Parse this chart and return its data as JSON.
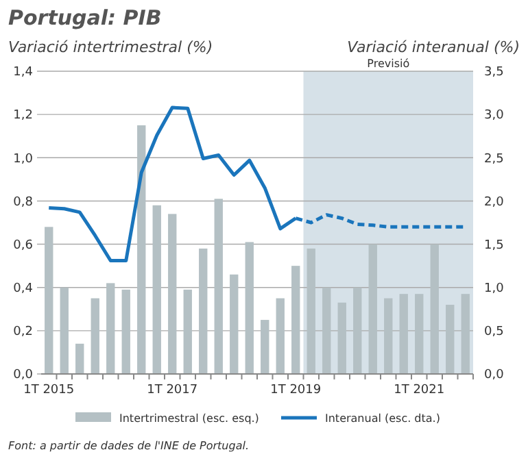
{
  "chart_data": {
    "type": "bar",
    "title": "Portugal: PIB",
    "ylabel": "Variació intertrimestral (%)",
    "y2label": "Variació interanual (%)",
    "categories": [
      "1T 2015",
      null,
      null,
      null,
      null,
      null,
      null,
      null,
      "1T 2017",
      null,
      null,
      null,
      null,
      null,
      null,
      null,
      "1T 2019",
      null,
      null,
      null,
      null,
      null,
      null,
      null,
      "1T 2021",
      null,
      null,
      null
    ],
    "series": [
      {
        "name": "Intertrimestral (esc. esq.)",
        "color": "#b4c0c4",
        "values": [
          0.68,
          0.4,
          0.14,
          0.35,
          0.42,
          0.39,
          1.15,
          0.78,
          0.74,
          0.39,
          0.58,
          0.81,
          0.46,
          0.61,
          0.25,
          0.35,
          0.5,
          0.58,
          0.4,
          0.33,
          0.4,
          0.6,
          0.35,
          0.37,
          0.37,
          0.6,
          0.32,
          0.37
        ]
      },
      {
        "name": "Interanual (esc. dta.)",
        "type": "line",
        "axis": "y2",
        "color": "#1a75bc",
        "line_style": "solid",
        "values": [
          1.92,
          1.91,
          1.87,
          1.6,
          1.31,
          1.31,
          2.33,
          2.76,
          3.08,
          3.07,
          2.49,
          2.53,
          2.3,
          2.47,
          2.15,
          1.68,
          1.8,
          null,
          null,
          null,
          null,
          null,
          null,
          null,
          null,
          null,
          null,
          null
        ]
      },
      {
        "type": "line",
        "axis": "y2",
        "color": "#1a75bc",
        "line_style": "dashed",
        "values": [
          null,
          null,
          null,
          null,
          null,
          null,
          null,
          null,
          null,
          null,
          null,
          null,
          null,
          null,
          null,
          null,
          1.8,
          1.75,
          1.84,
          1.8,
          1.73,
          1.72,
          1.7,
          1.7,
          1.7,
          1.7,
          1.7,
          1.7
        ]
      }
    ],
    "ylim": [
      0,
      1.4
    ],
    "yticks": [
      {
        "value": 0,
        "label": "0,0"
      },
      {
        "value": 0.2,
        "label": "0,2"
      },
      {
        "value": 0.4,
        "label": "0,4"
      },
      {
        "value": 0.6,
        "label": "0,6"
      },
      {
        "value": 0.8,
        "label": "0,8"
      },
      {
        "value": 1.0,
        "label": "1,0"
      },
      {
        "value": 1.2,
        "label": "1,2"
      },
      {
        "value": 1.4,
        "label": "1,4"
      }
    ],
    "y2lim": [
      0,
      3.5
    ],
    "y2ticks": [
      {
        "value": 0,
        "label": "0,0"
      },
      {
        "value": 0.5,
        "label": "0,5"
      },
      {
        "value": 1.0,
        "label": "1,0"
      },
      {
        "value": 1.5,
        "label": "1,5"
      },
      {
        "value": 2.0,
        "label": "2,0"
      },
      {
        "value": 2.5,
        "label": "2,5"
      },
      {
        "value": 3.0,
        "label": "3,0"
      },
      {
        "value": 3.5,
        "label": "3,5"
      }
    ],
    "grid": "y",
    "legend": "bottom",
    "annotations": [
      "Previsió",
      "Font: a partir de dades de l'INE de Portugal."
    ]
  }
}
